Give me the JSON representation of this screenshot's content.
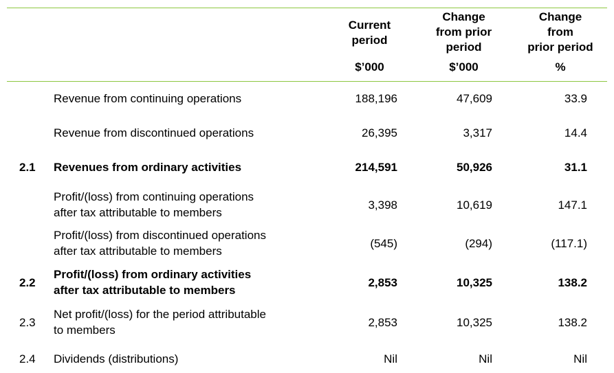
{
  "header": {
    "col1": "Current\nperiod",
    "col2": "Change\nfrom prior\nperiod",
    "col3": "Change\nfrom\nprior period",
    "col1_unit": "$’000",
    "col2_unit": "$’000",
    "col3_unit": "%"
  },
  "rows": [
    {
      "num": "",
      "desc": "Revenue from continuing operations",
      "current": "188,196",
      "change": "47,609",
      "pct": "33.9"
    },
    {
      "num": "",
      "desc": "Revenue from discontinued operations",
      "current": "26,395",
      "change": "3,317",
      "pct": "14.4"
    },
    {
      "num": "2.1",
      "desc": "Revenues from ordinary activities",
      "current": "214,591",
      "change": "50,926",
      "pct": "31.1"
    },
    {
      "num": "",
      "desc": "Profit/(loss) from continuing operations\nafter tax attributable to members",
      "current": "3,398",
      "change": "10,619",
      "pct": "147.1"
    },
    {
      "num": "",
      "desc": "Profit/(loss) from discontinued operations\nafter tax attributable to members",
      "current": "(545)",
      "change": "(294)",
      "pct": "(117.1)"
    },
    {
      "num": "2.2",
      "desc": "Profit/(loss) from ordinary activities\nafter tax attributable to members",
      "current": "2,853",
      "change": "10,325",
      "pct": "138.2"
    },
    {
      "num": "2.3",
      "desc": "Net profit/(loss) for the period attributable\nto members",
      "current": "2,853",
      "change": "10,325",
      "pct": "138.2"
    },
    {
      "num": "2.4",
      "desc": "Dividends (distributions)",
      "current": "Nil",
      "change": "Nil",
      "pct": "Nil"
    }
  ]
}
